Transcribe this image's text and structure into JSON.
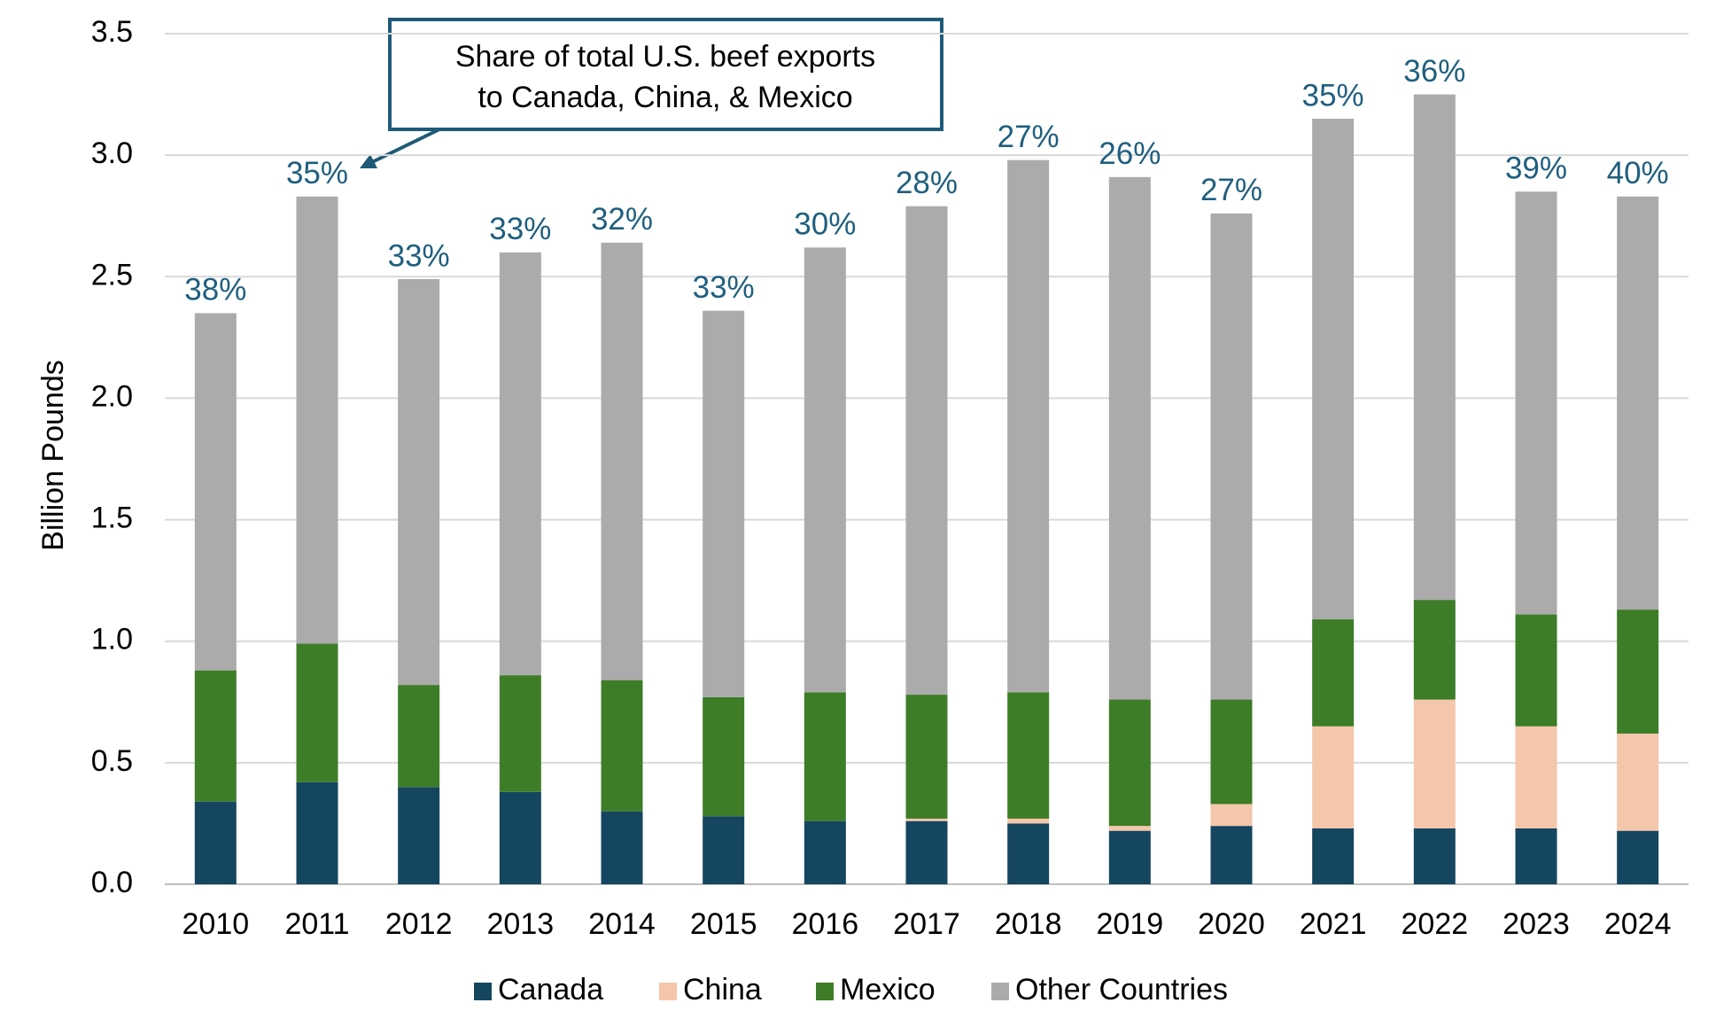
{
  "chart_data": {
    "type": "stacked_bar",
    "y_label": "Billion Pounds",
    "annotation": [
      "Share of total U.S. beef exports",
      "to Canada, China, & Mexico"
    ],
    "categories": [
      "2010",
      "2011",
      "2012",
      "2013",
      "2014",
      "2015",
      "2016",
      "2017",
      "2018",
      "2019",
      "2020",
      "2021",
      "2022",
      "2023",
      "2024"
    ],
    "series": [
      {
        "name": "Canada",
        "color": "#154660",
        "values": [
          0.34,
          0.42,
          0.4,
          0.38,
          0.3,
          0.28,
          0.26,
          0.26,
          0.25,
          0.22,
          0.24,
          0.23,
          0.23,
          0.23,
          0.22
        ]
      },
      {
        "name": "China",
        "color": "#f4c6aa",
        "values": [
          0,
          0,
          0,
          0,
          0,
          0,
          0,
          0.01,
          0.02,
          0.02,
          0.09,
          0.42,
          0.53,
          0.42,
          0.4
        ]
      },
      {
        "name": "Mexico",
        "color": "#3d7d28",
        "values": [
          0.54,
          0.57,
          0.42,
          0.48,
          0.54,
          0.49,
          0.53,
          0.51,
          0.52,
          0.52,
          0.43,
          0.44,
          0.41,
          0.46,
          0.51
        ]
      },
      {
        "name": "Other Countries",
        "color": "#ababab",
        "values": [
          1.47,
          1.84,
          1.67,
          1.74,
          1.8,
          1.59,
          1.83,
          2.01,
          2.19,
          2.15,
          2.0,
          2.06,
          2.08,
          1.74,
          1.7
        ]
      }
    ],
    "share_values": [
      38,
      35,
      33,
      33,
      32,
      33,
      30,
      28,
      27,
      26,
      27,
      35,
      36,
      39,
      40
    ],
    "share_value_labels": [
      "38%",
      "35%",
      "33%",
      "33%",
      "32%",
      "33%",
      "30%",
      "28%",
      "27%",
      "26%",
      "27%",
      "35%",
      "36%",
      "39%",
      "40%"
    ],
    "ylim": [
      0,
      3.5
    ],
    "yticks": [
      {
        "value": 0,
        "label": "0.0"
      },
      {
        "value": 0.5,
        "label": "0.5"
      },
      {
        "value": 1,
        "label": "1.0"
      },
      {
        "value": 1.5,
        "label": "1.5"
      },
      {
        "value": 2,
        "label": "2.0"
      },
      {
        "value": 2.5,
        "label": "2.5"
      },
      {
        "value": 3,
        "label": "3.0"
      },
      {
        "value": 3.5,
        "label": "3.5"
      }
    ],
    "grid": true
  }
}
